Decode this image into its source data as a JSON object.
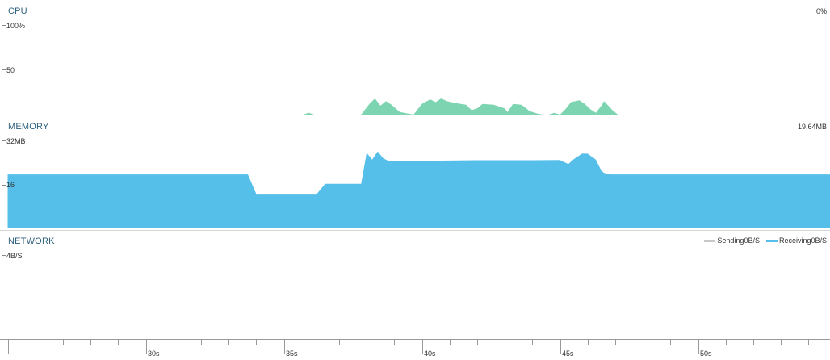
{
  "cpu": {
    "title": "CPU",
    "current_value": "0%",
    "ticks": [
      "100%",
      "50"
    ],
    "color": "#7dd4b0"
  },
  "memory": {
    "title": "MEMORY",
    "current_value": "19.64MB",
    "ticks": [
      "32MB",
      "16"
    ],
    "color": "#56bfe9"
  },
  "network": {
    "title": "NETWORK",
    "ticks": [
      "4B/S"
    ],
    "legend": [
      {
        "label": "Sending",
        "value": "0B/S",
        "color": "#c8c8c8"
      },
      {
        "label": "Receiving",
        "value": "0B/S",
        "color": "#56bfe9"
      }
    ]
  },
  "time_axis": {
    "labels": [
      "30s",
      "35s",
      "40s",
      "45s",
      "50s"
    ]
  },
  "chart_data": [
    {
      "type": "area",
      "title": "CPU",
      "ylabel": "",
      "xlabel": "",
      "ylim": [
        0,
        100
      ],
      "x": [
        25.0,
        35.7,
        35.9,
        36.1,
        37.8,
        38.1,
        38.3,
        38.5,
        38.7,
        38.9,
        39.2,
        39.7,
        40.0,
        40.3,
        40.5,
        40.7,
        40.9,
        41.2,
        41.6,
        41.8,
        42.0,
        42.2,
        42.6,
        43.0,
        43.1,
        43.3,
        43.6,
        43.7,
        43.9,
        44.2,
        44.4,
        44.6,
        44.8,
        45.0,
        45.2,
        45.4,
        45.7,
        45.9,
        46.1,
        46.3,
        46.5,
        46.6,
        46.9,
        47.1,
        47.5,
        55.0
      ],
      "y": [
        0,
        0,
        2,
        0,
        0,
        12,
        18,
        10,
        15,
        11,
        3,
        0,
        12,
        17,
        14,
        18,
        15,
        13,
        11,
        5,
        7,
        12,
        11,
        7,
        3,
        12,
        11,
        9,
        4,
        1,
        0,
        0,
        2,
        0,
        6,
        14,
        16,
        12,
        6,
        2,
        10,
        15,
        5,
        0,
        0,
        0
      ]
    },
    {
      "type": "area",
      "title": "MEMORY",
      "ylabel": "",
      "xlabel": "",
      "ylim": [
        0,
        32
      ],
      "x": [
        25.0,
        33.7,
        34.0,
        36.2,
        36.5,
        37.8,
        38.0,
        38.2,
        38.4,
        38.6,
        38.8,
        40.0,
        42.0,
        44.0,
        45.0,
        45.3,
        45.5,
        45.8,
        46.0,
        46.3,
        46.5,
        46.6,
        46.8,
        47.0,
        48.0,
        55.0
      ],
      "y": [
        19.64,
        19.64,
        12.6,
        12.6,
        16.2,
        16.2,
        27.5,
        25.0,
        28.0,
        25.5,
        24.5,
        24.6,
        24.8,
        24.8,
        24.9,
        23.4,
        25.2,
        27.2,
        27.2,
        25.0,
        21.0,
        20.2,
        19.64,
        19.64,
        19.64,
        19.64
      ]
    },
    {
      "type": "line",
      "title": "NETWORK",
      "ylabel": "",
      "xlabel": "",
      "ylim": [
        0,
        4
      ],
      "series": [
        {
          "name": "Sending",
          "x": [
            25.0,
            55.0
          ],
          "values": [
            0,
            0
          ]
        },
        {
          "name": "Receiving",
          "x": [
            25.0,
            55.0
          ],
          "values": [
            0,
            0
          ]
        }
      ]
    }
  ]
}
